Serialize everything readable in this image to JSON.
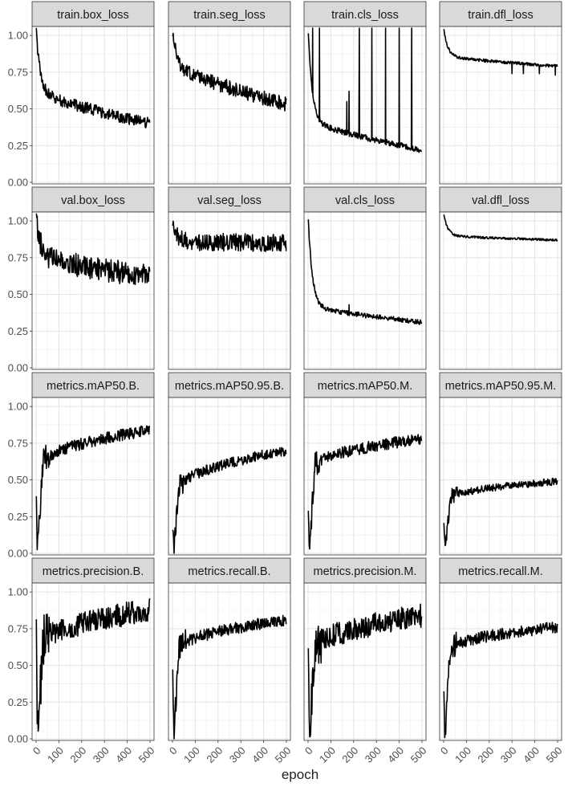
{
  "chart_data": {
    "type": "line",
    "layout": "facet-grid-4x4",
    "xlabel": "epoch",
    "ylabel": "",
    "xlim": [
      0,
      500
    ],
    "ylim": [
      0,
      1.05
    ],
    "x_ticks": [
      0,
      100,
      200,
      300,
      400,
      500
    ],
    "y_ticks": [
      0.0,
      0.25,
      0.5,
      0.75,
      1.0
    ],
    "y_tick_labels": [
      "0.00",
      "0.25",
      "0.50",
      "0.75",
      "1.00"
    ],
    "grid": true,
    "theme": "bw",
    "line_color": "#000000",
    "strip_color": "#d9d9d9",
    "panels": [
      {
        "title": "train.box_loss",
        "shape": "decay",
        "start": 1.05,
        "knee": 0.62,
        "end": 0.4,
        "noise": 0.02
      },
      {
        "title": "train.seg_loss",
        "shape": "decay",
        "start": 1.05,
        "knee": 0.8,
        "end": 0.53,
        "noise": 0.025
      },
      {
        "title": "train.cls_loss",
        "shape": "decay",
        "start": 1.05,
        "knee": 0.42,
        "end": 0.22,
        "noise": 0.01,
        "spikes": [
          [
            20,
            1.05
          ],
          [
            50,
            1.05
          ],
          [
            170,
            0.55
          ],
          [
            180,
            0.62
          ],
          [
            225,
            1.05
          ],
          [
            280,
            1.05
          ],
          [
            340,
            1.05
          ],
          [
            400,
            1.05
          ],
          [
            455,
            1.05
          ]
        ]
      },
      {
        "title": "train.dfl_loss",
        "shape": "decay",
        "start": 1.05,
        "knee": 0.86,
        "end": 0.79,
        "noise": 0.005,
        "spikes": [
          [
            300,
            0.74
          ],
          [
            350,
            0.74
          ],
          [
            420,
            0.74
          ],
          [
            490,
            0.73
          ]
        ]
      },
      {
        "title": "val.box_loss",
        "shape": "decay",
        "start": 1.05,
        "knee": 0.76,
        "end": 0.62,
        "noise": 0.04
      },
      {
        "title": "val.seg_loss",
        "shape": "decay",
        "start": 1.02,
        "knee": 0.86,
        "end": 0.85,
        "noise": 0.03
      },
      {
        "title": "val.cls_loss",
        "shape": "decay",
        "start": 1.05,
        "knee": 0.42,
        "end": 0.31,
        "noise": 0.008,
        "spikes": [
          [
            100,
            0.4
          ],
          [
            180,
            0.43
          ],
          [
            220,
            0.38
          ]
        ]
      },
      {
        "title": "val.dfl_loss",
        "shape": "decay",
        "start": 1.05,
        "knee": 0.9,
        "end": 0.87,
        "noise": 0.004
      },
      {
        "title": "metrics.mAP50.B.",
        "shape": "rise",
        "start": 0.4,
        "knee": 0.62,
        "end": 0.84,
        "noise": 0.02
      },
      {
        "title": "metrics.mAP50.95.B.",
        "shape": "rise",
        "start": 0.28,
        "knee": 0.45,
        "end": 0.7,
        "noise": 0.018
      },
      {
        "title": "metrics.mAP50.M.",
        "shape": "rise",
        "start": 0.4,
        "knee": 0.6,
        "end": 0.78,
        "noise": 0.02
      },
      {
        "title": "metrics.mAP50.95.M.",
        "shape": "rise",
        "start": 0.25,
        "knee": 0.38,
        "end": 0.49,
        "noise": 0.012
      },
      {
        "title": "metrics.precision.B.",
        "shape": "rise",
        "start": 0.9,
        "knee": 0.65,
        "end": 0.88,
        "noise": 0.04
      },
      {
        "title": "metrics.recall.B.",
        "shape": "rise",
        "start": 0.48,
        "knee": 0.62,
        "end": 0.81,
        "noise": 0.02
      },
      {
        "title": "metrics.precision.M.",
        "shape": "rise",
        "start": 0.9,
        "knee": 0.62,
        "end": 0.84,
        "noise": 0.04
      },
      {
        "title": "metrics.recall.M.",
        "shape": "rise",
        "start": 0.42,
        "knee": 0.62,
        "end": 0.76,
        "noise": 0.02
      }
    ]
  }
}
